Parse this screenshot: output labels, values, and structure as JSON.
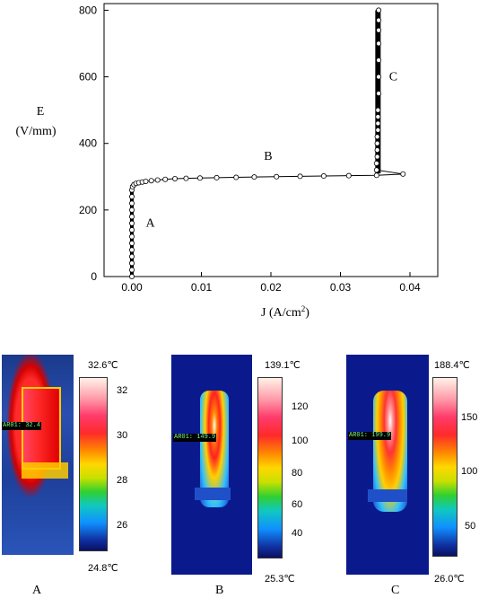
{
  "chart_data": {
    "type": "scatter",
    "ylabel_line1": "E",
    "ylabel_line2": "(V/mm)",
    "xlabel_main": "J (A/cm",
    "xlabel_sup": "2",
    "xlabel_end": ")",
    "xlim": [
      -0.004,
      0.044
    ],
    "ylim": [
      0,
      820
    ],
    "x_ticks": [
      0.0,
      0.01,
      0.02,
      0.03,
      0.04
    ],
    "x_tick_labels": [
      "0.00",
      "0.01",
      "0.02",
      "0.03",
      "0.04"
    ],
    "y_ticks": [
      0,
      200,
      400,
      600,
      800
    ],
    "y_tick_labels": [
      "0",
      "200",
      "400",
      "600",
      "800"
    ],
    "series": [
      {
        "x": [
          0,
          0,
          0,
          0,
          0,
          0,
          0,
          0,
          0,
          0,
          0,
          0,
          0,
          0,
          0.0001,
          0.0003,
          0.0006,
          0.001,
          0.0015,
          0.002,
          0.0028,
          0.0037,
          0.0048,
          0.0062,
          0.0078,
          0.0098,
          0.0122,
          0.015,
          0.0176,
          0.0208,
          0.0242,
          0.0276,
          0.0312,
          0.0352,
          0.039,
          0.0352,
          0.0352,
          0.0353,
          0.0353,
          0.0353,
          0.0353,
          0.0354,
          0.0354,
          0.0354,
          0.0354,
          0.0355,
          0.0355,
          0.0355,
          0.0355,
          0.0355,
          0.0355,
          0.0355
        ],
        "y": [
          0,
          20,
          40,
          60,
          80,
          100,
          120,
          140,
          160,
          180,
          200,
          220,
          240,
          260,
          270,
          276,
          280,
          282,
          284,
          286,
          288,
          290,
          292,
          294,
          295,
          296,
          297,
          298,
          299,
          300,
          301,
          302,
          303,
          304,
          308,
          320,
          340,
          360,
          380,
          400,
          420,
          440,
          460,
          480,
          500,
          550,
          600,
          650,
          700,
          740,
          770,
          800
        ]
      }
    ],
    "annotations": [
      {
        "text": "A",
        "x": 0.002,
        "y": 150
      },
      {
        "text": "B",
        "x": 0.019,
        "y": 350
      },
      {
        "text": "C",
        "x": 0.037,
        "y": 590
      }
    ]
  },
  "thermal": [
    {
      "label": "A",
      "max": "32.6℃",
      "min": "24.8℃",
      "roi": "AR01: 32.4",
      "ticks": [
        "32",
        "30",
        "28",
        "26"
      ]
    },
    {
      "label": "B",
      "max": "139.1℃",
      "min": "25.3℃",
      "roi": "AR01: 149.9",
      "ticks": [
        "120",
        "100",
        "80",
        "60",
        "40"
      ]
    },
    {
      "label": "C",
      "max": "188.4℃",
      "min": "26.0℃",
      "roi": "AR01: 199.9",
      "ticks": [
        "150",
        "100",
        "50"
      ]
    }
  ]
}
